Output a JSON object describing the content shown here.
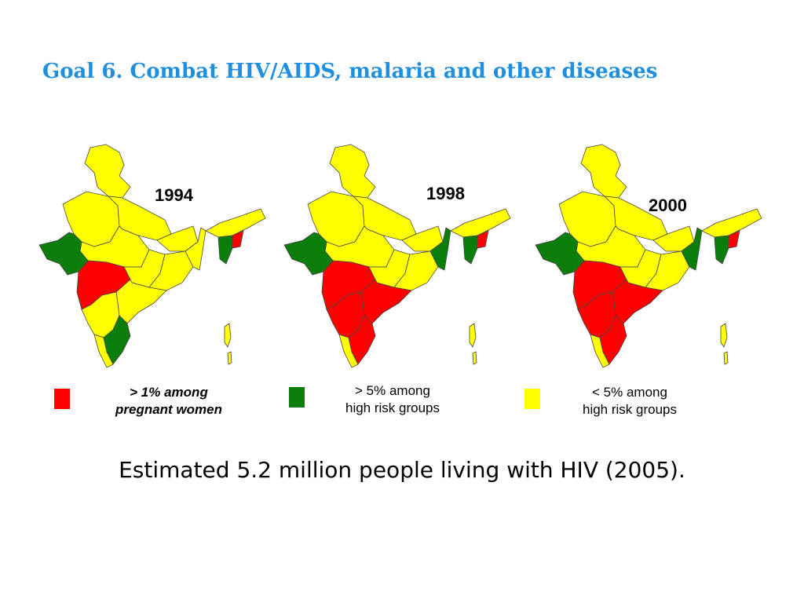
{
  "title": "Goal 6. Combat HIV/AIDS, malaria and other diseases",
  "colors": {
    "red": "#ff0000",
    "green": "#0a7d0a",
    "yellow": "#ffff00",
    "title": "#1f8fe0",
    "border": "#444444"
  },
  "maps": [
    {
      "year": "1994",
      "red_regions": [
        "maharashtra",
        "manipur"
      ],
      "green_regions": [
        "gujarat",
        "tamil-nadu",
        "mizoram"
      ]
    },
    {
      "year": "1998",
      "red_regions": [
        "maharashtra",
        "karnataka",
        "andhra-pradesh",
        "tamil-nadu",
        "manipur"
      ],
      "green_regions": [
        "gujarat",
        "west-bengal",
        "mizoram"
      ]
    },
    {
      "year": "2000",
      "red_regions": [
        "maharashtra",
        "karnataka",
        "andhra-pradesh",
        "tamil-nadu",
        "manipur"
      ],
      "green_regions": [
        "gujarat",
        "west-bengal",
        "mizoram"
      ]
    }
  ],
  "legend": [
    {
      "color": "red",
      "line1": "> 1% among",
      "line2": "pregnant women"
    },
    {
      "color": "green",
      "line1": "> 5%  among",
      "line2": "high risk groups"
    },
    {
      "color": "yellow",
      "line1": "< 5%  among",
      "line2": "high risk  groups"
    }
  ],
  "caption": "Estimated 5.2 million people living with HIV (2005)."
}
